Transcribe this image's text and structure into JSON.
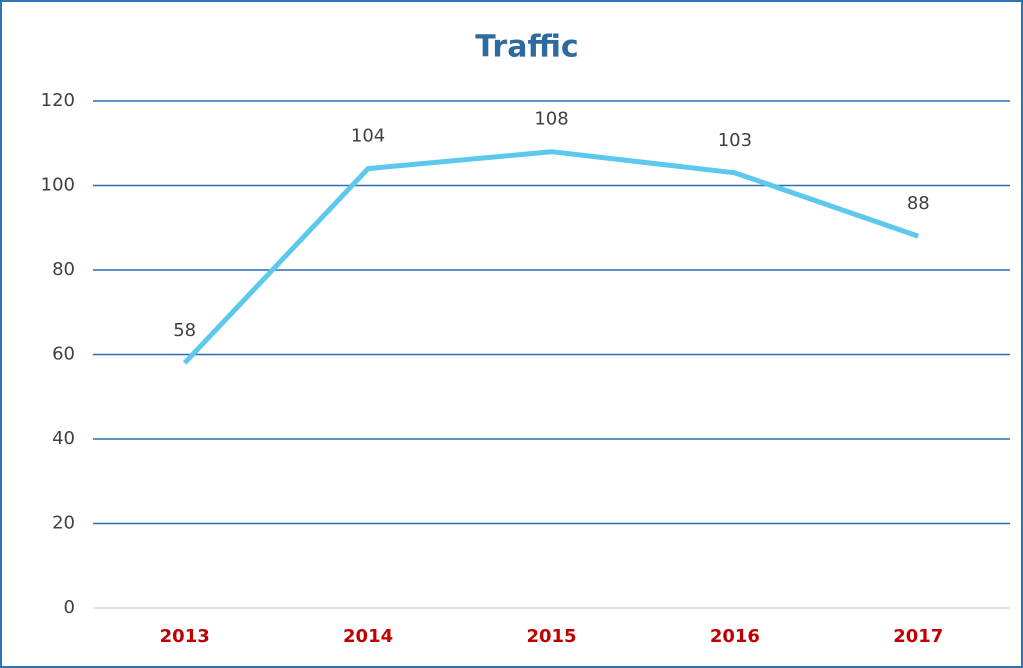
{
  "chart_data": {
    "type": "line",
    "title": "Traffic",
    "categories": [
      "2013",
      "2014",
      "2015",
      "2016",
      "2017"
    ],
    "series": [
      {
        "name": "Traffic",
        "color": "#5bc8ec",
        "values": [
          58,
          104,
          108,
          103,
          88
        ]
      }
    ],
    "ylim": [
      0,
      120
    ],
    "yticks": [
      0,
      20,
      40,
      60,
      80,
      100,
      120
    ],
    "grid": true,
    "grid_color": "#2a6db5",
    "category_color": "#c00000",
    "title_color": "#2e6a9e",
    "legend": false
  }
}
